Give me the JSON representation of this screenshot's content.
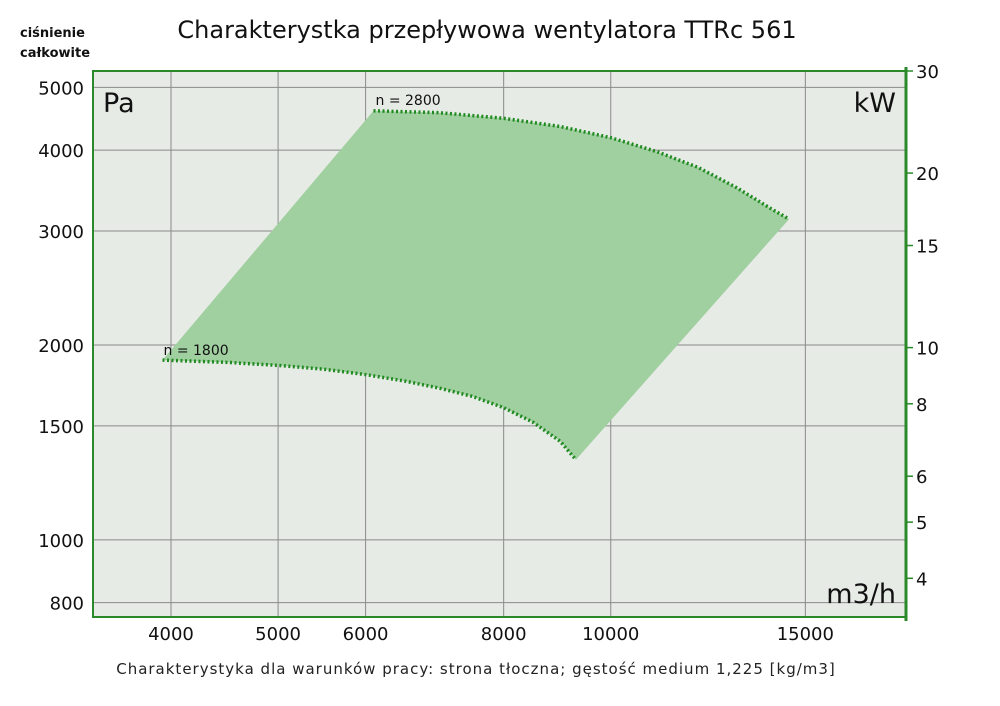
{
  "title": "Charakterystka przepływowa wentylatora TTRc 561",
  "footer": "Charakterystyka dla warunków pracy: strona tłoczna; gęstość medium 1,225 [kg/m3]",
  "y_axis_title": [
    "ciśnienie",
    "całkowite"
  ],
  "colors": {
    "frame": "#2a8a2a",
    "plot_bg": "#e6ebe6",
    "grid": "#8a8a8a",
    "region": "#a0cfa0",
    "curve": "#1f8a1f"
  },
  "chart_data": {
    "type": "area",
    "title": "Charakterystka przepływowa wentylatora TTRc 561",
    "xlabel": "m3/h",
    "ylabel": "Pa",
    "y2label": "kW",
    "xscale": "log",
    "yscale": "log",
    "xlim": [
      3400,
      18500
    ],
    "ylim": [
      760,
      5300
    ],
    "y2lim": [
      3.43,
      30
    ],
    "grid": true,
    "x_ticks": [
      4000,
      5000,
      6000,
      8000,
      10000,
      15000
    ],
    "x_tick_labels": [
      "4000",
      "5000",
      "6000",
      "8000",
      "10000",
      "15000"
    ],
    "y_ticks": [
      800,
      1000,
      1500,
      2000,
      3000,
      4000,
      5000
    ],
    "y_tick_labels": [
      "800",
      "1000",
      "1500",
      "2000",
      "3000",
      "4000",
      "5000"
    ],
    "y2_ticks": [
      4,
      5,
      6,
      8,
      10,
      15,
      20,
      30
    ],
    "y2_tick_labels": [
      "4",
      "5",
      "6",
      "8",
      "10",
      "15",
      "20",
      "30"
    ],
    "series": [
      {
        "name": "n = 2800",
        "label": "n = 2800",
        "x": [
          6100,
          7000,
          8000,
          9000,
          10000,
          11000,
          12000,
          13000,
          14000,
          14500
        ],
        "y": [
          4600,
          4570,
          4480,
          4350,
          4180,
          3980,
          3760,
          3500,
          3240,
          3130
        ]
      },
      {
        "name": "n = 1800",
        "label": "n = 1800",
        "x": [
          3930,
          4500,
          5000,
          5500,
          6000,
          6500,
          7000,
          7500,
          8000,
          8500,
          9000,
          9300
        ],
        "y": [
          1895,
          1880,
          1860,
          1835,
          1800,
          1760,
          1715,
          1665,
          1600,
          1520,
          1420,
          1330
        ]
      }
    ],
    "region": {
      "fill_between": [
        "n = 1800",
        "n = 2800"
      ],
      "lower_boundary": {
        "x": [
          3930,
          6100
        ],
        "y": [
          1895,
          4600
        ]
      },
      "upper_boundary": {
        "x": [
          9300,
          14500
        ],
        "y": [
          1330,
          3130
        ]
      }
    }
  }
}
